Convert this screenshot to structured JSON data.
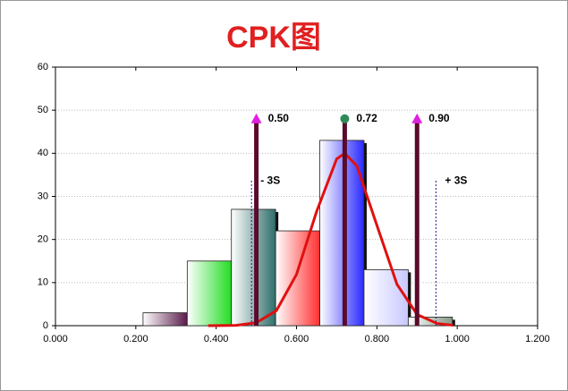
{
  "chart_data": {
    "type": "histogram",
    "title": "CPK图",
    "bins": [
      0.218,
      0.328,
      0.438,
      0.548,
      0.658,
      0.768,
      0.878,
      0.988
    ],
    "values": [
      3,
      15,
      27,
      22,
      43,
      13,
      2
    ],
    "colors": [
      "#5a1a4a",
      "#22dd22",
      "#2e6e6a",
      "#ff3030",
      "#2a2aff",
      "#c8c8ff",
      "#889988"
    ],
    "curve": {
      "color": "#e01010",
      "x": [
        0.38,
        0.45,
        0.5,
        0.55,
        0.6,
        0.65,
        0.7,
        0.72,
        0.75,
        0.8,
        0.85,
        0.9,
        0.95,
        0.99
      ],
      "values": [
        0,
        0.09,
        0.7,
        3.5,
        11.9,
        26.5,
        38.7,
        40,
        37.1,
        23.3,
        9.6,
        2.6,
        0.5,
        0.09
      ]
    },
    "markers": {
      "values": [
        0.5,
        0.72,
        0.9
      ],
      "value_labels": [
        "0.50",
        "0.72",
        "0.90"
      ],
      "top": 48,
      "line_color": "#5a0a2a",
      "colors": [
        "#e020e0",
        "#2e8b57",
        "#e020e0"
      ]
    },
    "sigma_lines": {
      "values": [
        0.488,
        0.947
      ],
      "labels": [
        "- 3S",
        "+ 3S"
      ],
      "top": 34,
      "color": "#1a1a99"
    },
    "xlim": [
      0,
      1.2
    ],
    "xticks": [
      {
        "value": 0,
        "label": "0.000"
      },
      {
        "value": 0.2,
        "label": "0.200"
      },
      {
        "value": 0.4,
        "label": "0.400"
      },
      {
        "value": 0.6,
        "label": "0.600"
      },
      {
        "value": 0.8,
        "label": "0.800"
      },
      {
        "value": 1.0,
        "label": "1.000"
      },
      {
        "value": 1.2,
        "label": "1.200"
      }
    ],
    "ylim": [
      0,
      60
    ],
    "yticks": [
      0,
      10,
      20,
      30,
      40,
      50,
      60
    ],
    "grid": true
  }
}
